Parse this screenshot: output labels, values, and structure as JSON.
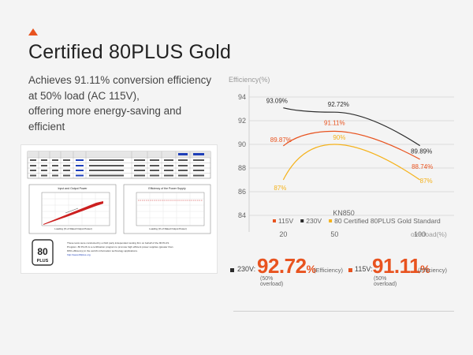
{
  "heading": {
    "title": "Certified 80PLUS Gold",
    "description_lines": [
      "Achieves 91.11% conversion efficiency",
      "at 50% load (AC 115V),",
      "offering more energy-saving and",
      "efficient"
    ]
  },
  "report_thumbnail": {
    "badge_line1": "80",
    "badge_line2": "PLUS",
    "note_lines": [
      "These tests were conducted by a third party independent testing firm on behalf of the 80 PLUS",
      "Program. 80 PLUS is a certification program to promote high efficient power supplies (greater than",
      "80% efficiency) in the world's information technology applications."
    ],
    "note_link": "http://www.80plus.org",
    "left_plot_title": "Input and Output Power",
    "right_plot_title": "Efficiency of the Power Supply",
    "left_plot_xlabel": "Loading (% of Rated Output Power)",
    "right_plot_xlabel": "Loading (% of Rated Output Power)"
  },
  "chart_data": {
    "type": "line",
    "ylabel": "Efficiency(%)",
    "xlabel": "overload(%)",
    "title": "KN850",
    "x": [
      20,
      50,
      100
    ],
    "x_tick_labels": [
      "20",
      "50",
      "100"
    ],
    "y_ticks": [
      84,
      86,
      88,
      90,
      92,
      94
    ],
    "ylim": [
      83,
      95
    ],
    "xlim": [
      0,
      120
    ],
    "legend_position": "bottom",
    "series": [
      {
        "name": "115V",
        "color": "#e8531f",
        "values": [
          89.87,
          91.11,
          88.74
        ],
        "labels": [
          "89.87%",
          "91.11%",
          "88.74%"
        ]
      },
      {
        "name": "230V",
        "color": "#2b2b2b",
        "values": [
          93.09,
          92.72,
          89.89
        ],
        "labels": [
          "93.09%",
          "92.72%",
          "89.89%"
        ]
      },
      {
        "name": "80 Certified 80PLUS Gold Standard",
        "color": "#f5b21b",
        "values": [
          87,
          90,
          87
        ],
        "labels": [
          "87%",
          "90%",
          "87%"
        ]
      }
    ]
  },
  "metrics": {
    "m230": {
      "label": "230V:",
      "value": "92.72",
      "pct": "%",
      "unit": "(Efficiency)",
      "sub": "(50% overload)",
      "dot_color": "#2b2b2b"
    },
    "m115": {
      "label": "115V:",
      "value": "91.11",
      "pct": "%",
      "unit": "(Efficiency)",
      "sub": "(50% overload)",
      "dot_color": "#e8531f"
    }
  }
}
